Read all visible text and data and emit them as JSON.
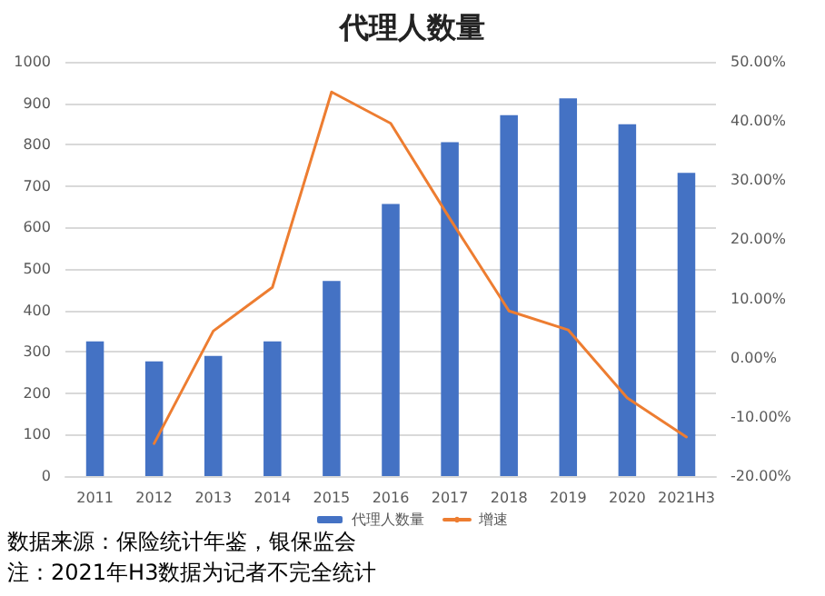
{
  "chart_data": {
    "type": "bar",
    "title": "代理人数量",
    "categories": [
      "2011",
      "2012",
      "2013",
      "2014",
      "2015",
      "2016",
      "2017",
      "2018",
      "2019",
      "2020",
      "2021H3"
    ],
    "series": [
      {
        "name": "代理人数量",
        "color": "#4472c4",
        "values": [
          325,
          277,
          290,
          325,
          471,
          657,
          806,
          871,
          912,
          849,
          732
        ]
      },
      {
        "name": "增速",
        "type": "line",
        "axis": "y2",
        "color": "#ed7d31",
        "values": [
          null,
          -14.5,
          4.5,
          11.9,
          44.9,
          39.6,
          23.5,
          7.9,
          4.7,
          -6.8,
          -13.4
        ]
      }
    ],
    "ylim": [
      0,
      1000
    ],
    "yticks": [
      0,
      100,
      200,
      300,
      400,
      500,
      600,
      700,
      800,
      900,
      1000
    ],
    "y2lim": [
      -20,
      50
    ],
    "y2ticks": [
      {
        "value": -20,
        "label": "-20.00%"
      },
      {
        "value": -10,
        "label": "-10.00%"
      },
      {
        "value": 0,
        "label": "0.00%"
      },
      {
        "value": 10,
        "label": "10.00%"
      },
      {
        "value": 20,
        "label": "20.00%"
      },
      {
        "value": 30,
        "label": "30.00%"
      },
      {
        "value": 40,
        "label": "40.00%"
      },
      {
        "value": 50,
        "label": "50.00%"
      }
    ],
    "grid": "y",
    "legend": "bottom",
    "marker": "none",
    "line_style": "solid",
    "annotations": [
      "数据来源：保险统计年鉴，银保监会",
      "注：2021年H3数据为记者不完全统计"
    ]
  }
}
